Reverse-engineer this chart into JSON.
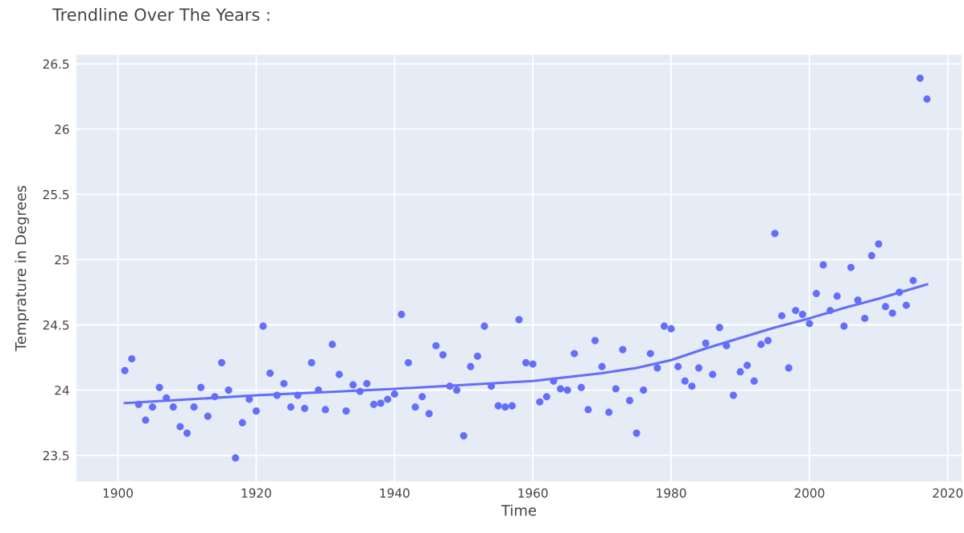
{
  "chart_data": {
    "type": "scatter",
    "title": "Trendline Over The Years :",
    "xlabel": "Time",
    "ylabel": "Temprature in Degrees",
    "x": [
      1901,
      1902,
      1903,
      1904,
      1905,
      1906,
      1907,
      1908,
      1909,
      1910,
      1911,
      1912,
      1913,
      1914,
      1915,
      1916,
      1917,
      1918,
      1919,
      1920,
      1921,
      1922,
      1923,
      1924,
      1925,
      1926,
      1927,
      1928,
      1929,
      1930,
      1931,
      1932,
      1933,
      1934,
      1935,
      1936,
      1937,
      1938,
      1939,
      1940,
      1941,
      1942,
      1943,
      1944,
      1945,
      1946,
      1947,
      1948,
      1949,
      1950,
      1951,
      1952,
      1953,
      1954,
      1955,
      1956,
      1957,
      1958,
      1959,
      1960,
      1961,
      1962,
      1963,
      1964,
      1965,
      1966,
      1967,
      1968,
      1969,
      1970,
      1971,
      1972,
      1973,
      1974,
      1975,
      1976,
      1977,
      1978,
      1979,
      1980,
      1981,
      1982,
      1983,
      1984,
      1985,
      1986,
      1987,
      1988,
      1989,
      1990,
      1991,
      1992,
      1993,
      1994,
      1995,
      1996,
      1997,
      1998,
      1999,
      2000,
      2001,
      2002,
      2003,
      2004,
      2005,
      2006,
      2007,
      2008,
      2009,
      2010,
      2011,
      2012,
      2013,
      2014,
      2015,
      2016,
      2017
    ],
    "series": [
      {
        "color": "#636efa",
        "marker": "circle",
        "values": [
          24.15,
          24.24,
          23.89,
          23.77,
          23.87,
          24.02,
          23.94,
          23.87,
          23.72,
          23.67,
          23.87,
          24.02,
          23.8,
          23.95,
          24.21,
          24.0,
          23.48,
          23.75,
          23.93,
          23.84,
          24.49,
          24.13,
          23.96,
          24.05,
          23.87,
          23.96,
          23.86,
          24.21,
          24.0,
          23.85,
          24.35,
          24.12,
          23.84,
          24.04,
          23.99,
          24.05,
          23.89,
          23.9,
          23.93,
          23.97,
          24.58,
          24.21,
          23.87,
          23.95,
          23.82,
          24.34,
          24.27,
          24.03,
          24.0,
          23.65,
          24.18,
          24.26,
          24.49,
          24.03,
          23.88,
          23.87,
          23.88,
          24.54,
          24.21,
          24.2,
          23.91,
          23.95,
          24.07,
          24.01,
          24.0,
          24.28,
          24.02,
          23.85,
          24.38,
          24.18,
          23.83,
          24.01,
          24.31,
          23.92,
          23.67,
          24.0,
          24.28,
          24.17,
          24.49,
          24.47,
          24.18,
          24.07,
          24.03,
          24.17,
          24.36,
          24.12,
          24.48,
          24.34,
          23.96,
          24.14,
          24.19,
          24.07,
          24.35,
          24.38,
          25.2,
          24.57,
          24.17,
          24.61,
          24.58,
          24.51,
          24.74,
          24.96,
          24.61,
          24.72,
          24.49,
          24.94,
          24.69,
          24.55,
          25.03,
          25.12,
          24.64,
          24.59,
          24.75,
          24.65,
          24.84,
          26.39,
          26.23
        ]
      },
      {
        "type": "line",
        "color": "#636efa",
        "line_style": "solid",
        "x": [
          1901,
          1920,
          1940,
          1960,
          1970,
          1975,
          1980,
          1985,
          1990,
          1995,
          2000,
          2005,
          2010,
          2017
        ],
        "values": [
          23.9,
          23.96,
          24.01,
          24.07,
          24.13,
          24.17,
          24.23,
          24.32,
          24.4,
          24.48,
          24.55,
          24.63,
          24.7,
          24.81
        ]
      }
    ],
    "xlim": [
      1894,
      2022
    ],
    "xticks": [
      1900,
      1920,
      1940,
      1960,
      1980,
      2000,
      2020
    ],
    "ylim": [
      23.3,
      26.57
    ],
    "yticks": [
      23.5,
      24,
      {
        "value": 24.5,
        "label": "24.5"
      },
      25,
      25.5,
      26,
      26.5
    ],
    "grid": true,
    "legend": false
  }
}
